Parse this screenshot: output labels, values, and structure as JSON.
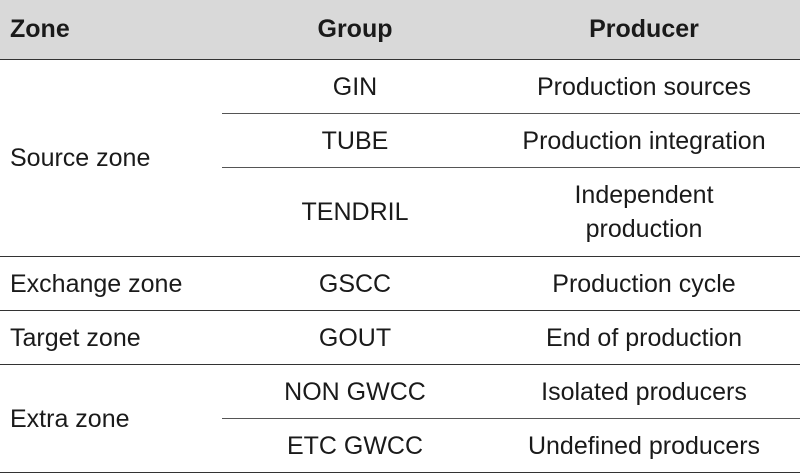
{
  "headers": {
    "zone": "Zone",
    "group": "Group",
    "producer": "Producer"
  },
  "zones": [
    {
      "zone": "Source zone",
      "rows": [
        {
          "group": "GIN",
          "producer": "Production sources"
        },
        {
          "group": "TUBE",
          "producer": "Production integration"
        },
        {
          "group": "TENDRIL",
          "producer": "Independent production"
        }
      ]
    },
    {
      "zone": "Exchange zone",
      "rows": [
        {
          "group": "GSCC",
          "producer": "Production cycle"
        }
      ]
    },
    {
      "zone": "Target zone",
      "rows": [
        {
          "group": "GOUT",
          "producer": "End of production"
        }
      ]
    },
    {
      "zone": "Extra zone",
      "rows": [
        {
          "group": "NON GWCC",
          "producer": "Isolated producers"
        },
        {
          "group": "ETC GWCC",
          "producer": "Undefined producers"
        }
      ]
    }
  ]
}
